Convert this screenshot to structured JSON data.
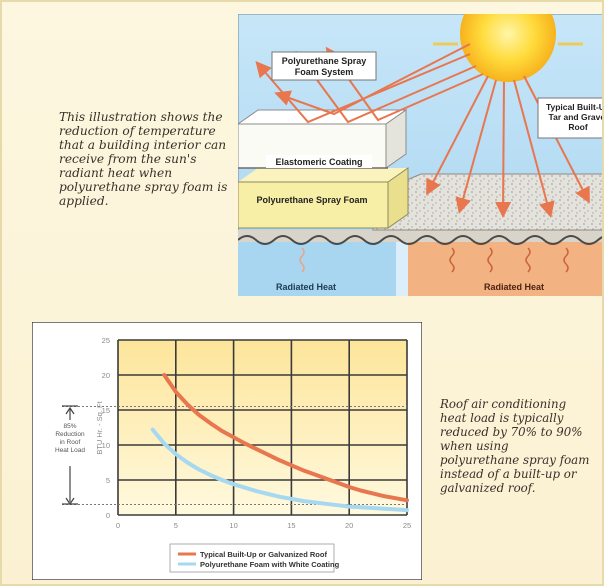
{
  "captions": {
    "top": "This illustration shows the reduction of temperature that a building interior can receive from the sun's radiant heat when polyurethane spray foam is applied.",
    "bottom": "Roof air conditioning heat load is typically reduced by 70% to 90% when using polyurethane spray foam instead of a built-up or galvanized roof."
  },
  "diagram": {
    "labels": {
      "foam_system": [
        "Polyurethane Spray",
        "Foam System"
      ],
      "elastomeric": "Elastomeric Coating",
      "spray_foam": "Polyurethane Spray Foam",
      "builtup": [
        "Typical Built-Up",
        "Tar and Gravel",
        "Roof"
      ],
      "radiated_left": "Radiated Heat",
      "radiated_right": "Radiated Heat"
    },
    "colors": {
      "sky": "#bfe0f5",
      "sun": "#ffd43b",
      "ray": "#e8764e",
      "foam": "#f8efa6",
      "coating": "#ffffff",
      "gravel": "#e2e0d9",
      "interior_cool": "#a8d5f0",
      "interior_hot": "#f3b282"
    }
  },
  "chart_data": {
    "type": "line",
    "ylabel": "BTU Hr. - Sq. Ft",
    "x_ticks": [
      "0",
      "5",
      "10",
      "15",
      "20",
      "25"
    ],
    "y_ticks": [
      "0",
      "5",
      "10",
      "15",
      "20",
      "25"
    ],
    "xlim": [
      0,
      25
    ],
    "ylim": [
      0,
      25
    ],
    "grid": true,
    "legend_position": "bottom",
    "series": [
      {
        "name": "Typical Built-Up or Galvanized Roof",
        "color": "#e8764e",
        "x": [
          4,
          5,
          6,
          7,
          8,
          9,
          10,
          11,
          12,
          13,
          14,
          15,
          16,
          17,
          18,
          19,
          20,
          21,
          22,
          23,
          24,
          25
        ],
        "y": [
          20,
          17.6,
          15.8,
          14.3,
          13.1,
          12,
          11.1,
          10.2,
          9.4,
          8.6,
          7.8,
          7.1,
          6.4,
          5.8,
          5.2,
          4.6,
          4,
          3.5,
          3.1,
          2.7,
          2.4,
          2.1
        ]
      },
      {
        "name": "Polyurethane Foam with White Coating",
        "color": "#a7d8f2",
        "x": [
          3,
          4,
          5,
          6,
          7,
          8,
          9,
          10,
          11,
          12,
          13,
          14,
          15,
          16,
          17,
          18,
          19,
          20,
          21,
          22,
          23,
          24,
          25
        ],
        "y": [
          12.2,
          10.2,
          8.7,
          7.5,
          6.5,
          5.7,
          5,
          4.4,
          3.9,
          3.4,
          3,
          2.6,
          2.3,
          2,
          1.8,
          1.6,
          1.4,
          1.2,
          1.1,
          1,
          0.9,
          0.8,
          0.7
        ]
      }
    ],
    "reference_lines": [
      {
        "y": 15.5,
        "style": "dotted"
      },
      {
        "y": 1.5,
        "style": "dotted"
      }
    ],
    "annotation": {
      "text": [
        "85%",
        "Reduction",
        "in Roof",
        "Heat Load"
      ]
    }
  }
}
